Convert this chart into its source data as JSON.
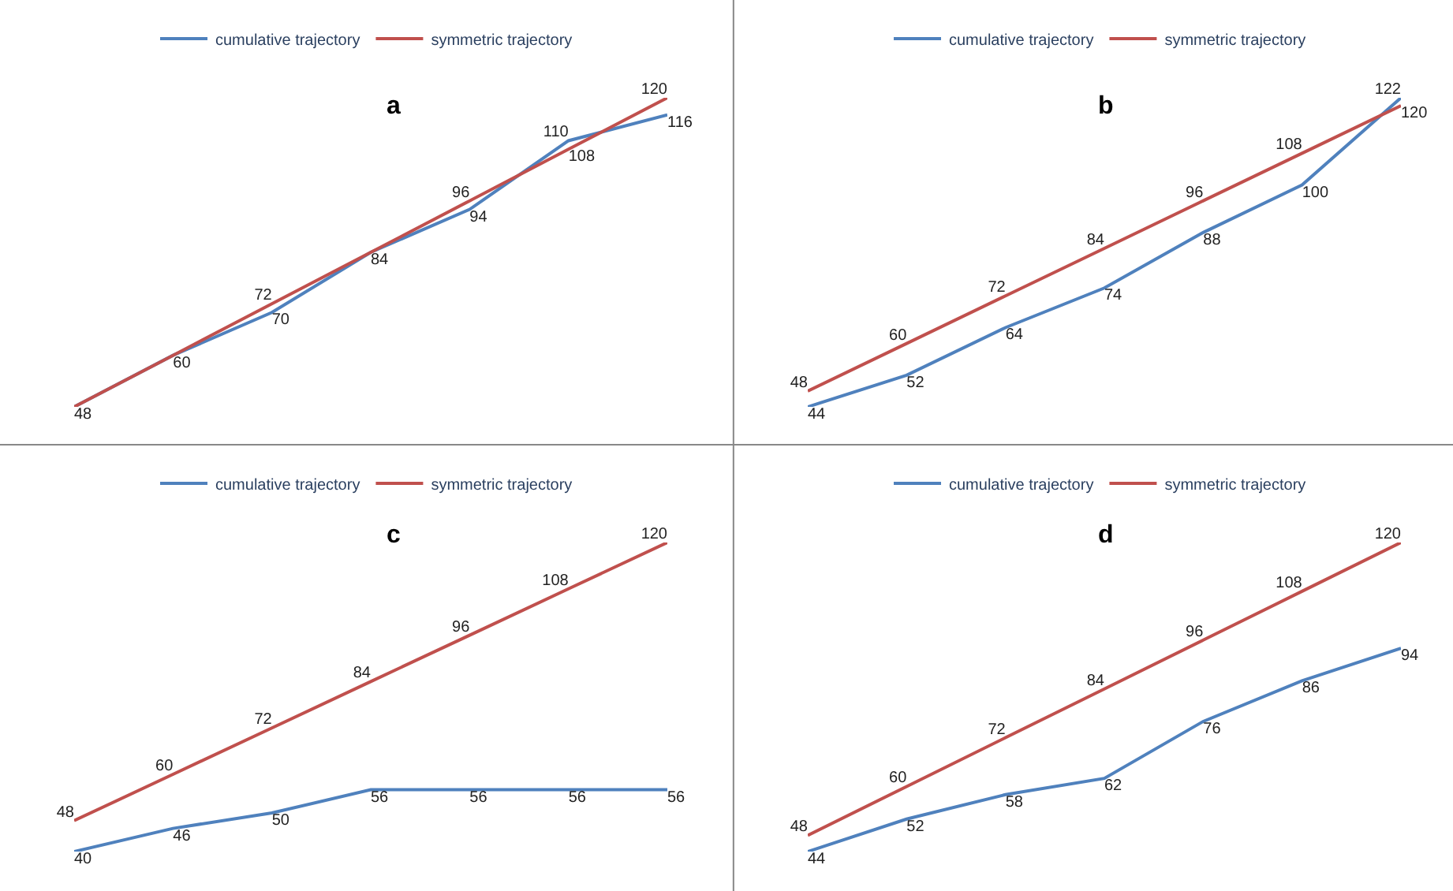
{
  "chart_data": [
    {
      "type": "line",
      "title": "a",
      "categories": [
        null,
        null,
        null,
        null,
        null,
        null,
        null
      ],
      "data_labels": true,
      "legend": "top",
      "tick_labels": false,
      "marker": "none",
      "series": [
        {
          "name": "cumulative trajectory",
          "color": "#4f81bd",
          "values": [
            48,
            60,
            70,
            84,
            94,
            110,
            116
          ]
        },
        {
          "name": "symmetric trajectory",
          "color": "#c0504d",
          "values": [
            48,
            60,
            72,
            84,
            96,
            108,
            120
          ],
          "value_labels": [
            null,
            null,
            "72",
            null,
            "96",
            "108",
            "120"
          ]
        }
      ]
    },
    {
      "type": "line",
      "title": "b",
      "categories": [
        null,
        null,
        null,
        null,
        null,
        null,
        null
      ],
      "data_labels": true,
      "legend": "top",
      "tick_labels": false,
      "marker": "none",
      "series": [
        {
          "name": "cumulative trajectory",
          "color": "#4f81bd",
          "values": [
            44,
            52,
            64,
            74,
            88,
            100,
            122
          ]
        },
        {
          "name": "symmetric trajectory",
          "color": "#c0504d",
          "values": [
            48,
            60,
            72,
            84,
            96,
            108,
            120
          ]
        }
      ]
    },
    {
      "type": "line",
      "title": "c",
      "categories": [
        null,
        null,
        null,
        null,
        null,
        null,
        null
      ],
      "data_labels": true,
      "legend": "top",
      "tick_labels": false,
      "marker": "none",
      "series": [
        {
          "name": "cumulative trajectory",
          "color": "#4f81bd",
          "values": [
            40,
            46,
            50,
            56,
            56,
            56,
            56
          ]
        },
        {
          "name": "symmetric trajectory",
          "color": "#c0504d",
          "values": [
            48,
            60,
            72,
            84,
            96,
            108,
            120
          ]
        }
      ]
    },
    {
      "type": "line",
      "title": "d",
      "categories": [
        null,
        null,
        null,
        null,
        null,
        null,
        null
      ],
      "data_labels": true,
      "legend": "top",
      "tick_labels": false,
      "marker": "none",
      "series": [
        {
          "name": "cumulative trajectory",
          "color": "#4f81bd",
          "values": [
            44,
            52,
            58,
            62,
            76,
            86,
            94
          ]
        },
        {
          "name": "symmetric trajectory",
          "color": "#c0504d",
          "values": [
            48,
            60,
            72,
            84,
            96,
            108,
            120
          ]
        }
      ]
    }
  ]
}
